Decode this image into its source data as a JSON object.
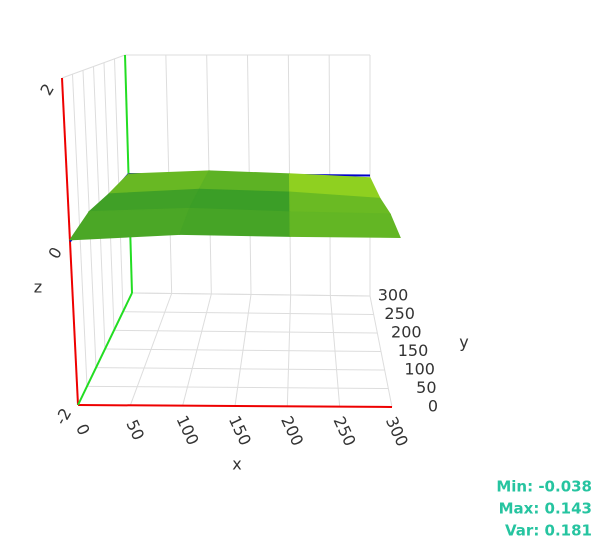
{
  "chart_data": {
    "type": "surface",
    "xlabel": "x",
    "ylabel": "y",
    "zlabel": "z",
    "xlim": [
      0,
      300
    ],
    "ylim": [
      0,
      300
    ],
    "zlim": [
      -2,
      2
    ],
    "xticks": [
      0,
      50,
      100,
      150,
      200,
      250,
      300
    ],
    "yticks": [
      0,
      50,
      100,
      150,
      200,
      250,
      300
    ],
    "zticks": [
      -2,
      0,
      2
    ],
    "surface": {
      "x": [
        0,
        100,
        200,
        300
      ],
      "y": [
        0,
        100,
        200,
        300
      ],
      "z": [
        [
          0.02,
          0.08,
          0.05,
          0.03
        ],
        [
          0.1,
          0.14,
          0.09,
          0.06
        ],
        [
          0.04,
          0.11,
          0.07,
          -0.02
        ],
        [
          0.0,
          0.06,
          0.02,
          -0.038
        ]
      ]
    },
    "colorscale": [
      "#1a8a2a",
      "#b8e81c"
    ],
    "annotations": [
      "Min: -0.038",
      "Max: 0.143",
      "Var: 0.181"
    ]
  }
}
